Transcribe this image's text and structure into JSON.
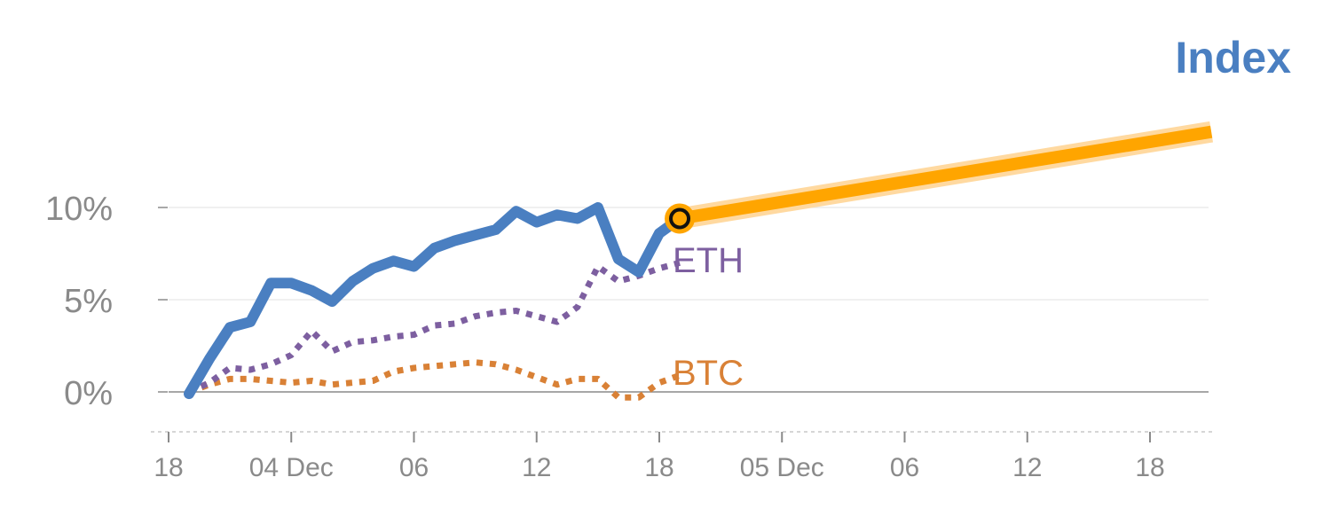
{
  "colors": {
    "index": "#4a7fc1",
    "eth": "#7d5fa0",
    "btc": "#d98136",
    "forecast": "#ffa500",
    "forecast_glow": "#ffd9a0",
    "grid": "#e6e6e6",
    "zero_line": "#8a8a8a",
    "tick_text": "#8a8a8a"
  },
  "chart_data": {
    "type": "line",
    "title": "",
    "legend_label": "Index",
    "xlabel": "",
    "ylabel": "",
    "ylim": [
      -2.2,
      15
    ],
    "xlim": [
      0,
      51
    ],
    "yticks": [
      {
        "value": 0,
        "label": "0%"
      },
      {
        "value": 5,
        "label": "5%"
      },
      {
        "value": 10,
        "label": "10%"
      }
    ],
    "xticks": [
      {
        "value": 0,
        "label": "18"
      },
      {
        "value": 6,
        "label": "04 Dec"
      },
      {
        "value": 12,
        "label": "06"
      },
      {
        "value": 18,
        "label": "12"
      },
      {
        "value": 24,
        "label": "18"
      },
      {
        "value": 30,
        "label": "05 Dec"
      },
      {
        "value": 36,
        "label": "06"
      },
      {
        "value": 42,
        "label": "12"
      },
      {
        "value": 48,
        "label": "18"
      }
    ],
    "grid": true,
    "series": [
      {
        "key": "index",
        "style": "solid",
        "x": [
          1,
          2,
          3,
          4,
          5,
          6,
          7,
          8,
          9,
          10,
          11,
          12,
          13,
          14,
          15,
          16,
          17,
          18,
          19,
          20,
          21,
          22,
          23,
          24,
          25
        ],
        "y": [
          -0.1,
          1.8,
          3.5,
          3.8,
          5.9,
          5.9,
          5.5,
          4.9,
          6.0,
          6.7,
          7.1,
          6.8,
          7.8,
          8.2,
          8.5,
          8.8,
          9.8,
          9.2,
          9.6,
          9.4,
          10.0,
          7.2,
          6.5,
          8.6,
          9.4
        ]
      },
      {
        "key": "eth",
        "name": "ETH",
        "style": "dotted",
        "x": [
          1,
          2,
          3,
          4,
          5,
          6,
          7,
          8,
          9,
          10,
          11,
          12,
          13,
          14,
          15,
          16,
          17,
          18,
          19,
          20,
          21,
          22,
          23,
          24,
          25
        ],
        "y": [
          0,
          0.5,
          1.3,
          1.2,
          1.5,
          2.0,
          3.3,
          2.2,
          2.7,
          2.8,
          3.0,
          3.1,
          3.6,
          3.7,
          4.1,
          4.3,
          4.4,
          4.1,
          3.8,
          4.6,
          6.8,
          6.0,
          6.3,
          6.7,
          7.0
        ]
      },
      {
        "key": "btc",
        "name": "BTC",
        "style": "dotted",
        "x": [
          1,
          2,
          3,
          4,
          5,
          6,
          7,
          8,
          9,
          10,
          11,
          12,
          13,
          14,
          15,
          16,
          17,
          18,
          19,
          20,
          21,
          22,
          23,
          24,
          25
        ],
        "y": [
          0,
          0.4,
          0.7,
          0.7,
          0.6,
          0.5,
          0.6,
          0.4,
          0.5,
          0.6,
          1.1,
          1.3,
          1.4,
          1.5,
          1.6,
          1.5,
          1.2,
          0.8,
          0.4,
          0.7,
          0.7,
          -0.3,
          -0.3,
          0.5,
          0.9
        ]
      },
      {
        "key": "forecast",
        "style": "thick",
        "x": [
          25,
          51
        ],
        "y": [
          9.4,
          14.1
        ]
      }
    ],
    "marker": {
      "x": 25,
      "y": 9.4
    }
  }
}
